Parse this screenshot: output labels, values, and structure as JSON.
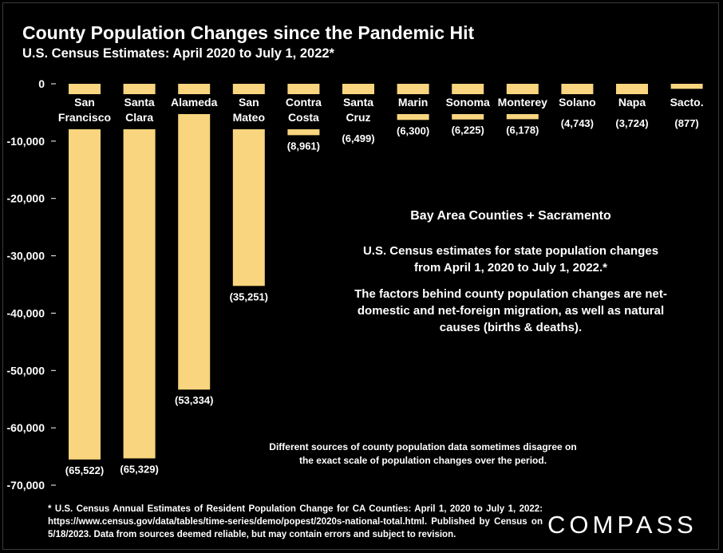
{
  "header": {
    "title": "County Population Changes since the Pandemic Hit",
    "subtitle": "U.S. Census Estimates: April 2020 to July 1, 2022*"
  },
  "chart_data": {
    "type": "bar",
    "categories": [
      [
        "San",
        "Francisco"
      ],
      [
        "Santa",
        "Clara"
      ],
      [
        "Alameda"
      ],
      [
        "San",
        "Mateo"
      ],
      [
        "Contra",
        "Costa"
      ],
      [
        "Santa",
        "Cruz"
      ],
      [
        "Marin"
      ],
      [
        "Sonoma"
      ],
      [
        "Monterey"
      ],
      [
        "Solano"
      ],
      [
        "Napa"
      ],
      [
        "Sacto."
      ]
    ],
    "values": [
      -65522,
      -65329,
      -53334,
      -35251,
      -8961,
      -6499,
      -6300,
      -6225,
      -6178,
      -4743,
      -3724,
      -877
    ],
    "data_labels": [
      "(65,522)",
      "(65,329)",
      "(53,334)",
      "(35,251)",
      "(8,961)",
      "(6,499)",
      "(6,300)",
      "(6,225)",
      "(6,178)",
      "(4,743)",
      "(3,724)",
      "(877)"
    ],
    "yticks": [
      0,
      -10000,
      -20000,
      -30000,
      -40000,
      -50000,
      -60000,
      -70000
    ],
    "ytick_labels": [
      "0",
      "-10,000",
      "-20,000",
      "-30,000",
      "-40,000",
      "-50,000",
      "-60,000",
      "-70,000"
    ],
    "ylim": [
      -70000,
      0
    ],
    "grid": false,
    "bar_color": "#f8d57e",
    "background": "#000000"
  },
  "notes": {
    "heading": "Bay Area Counties + Sacramento",
    "para1": "U.S. Census estimates for state population changes from April 1, 2020 to July 1, 2022.*",
    "para2": "The factors behind county population changes are net-domestic and net-foreign migration, as well as natural causes (births & deaths)."
  },
  "caveat": "Different sources of county population data sometimes disagree on the exact scale of population changes over the period.",
  "footnote": "* U.S. Census Annual Estimates of Resident Population Change for CA Counties: April 1, 2020 to July 1, 2022: https://www.census.gov/data/tables/time-series/demo/popest/2020s-national-total.html. Published by Census on 5/18/2023. Data from sources deemed reliable, but may contain errors and subject to revision.",
  "logo": "COMPASS"
}
